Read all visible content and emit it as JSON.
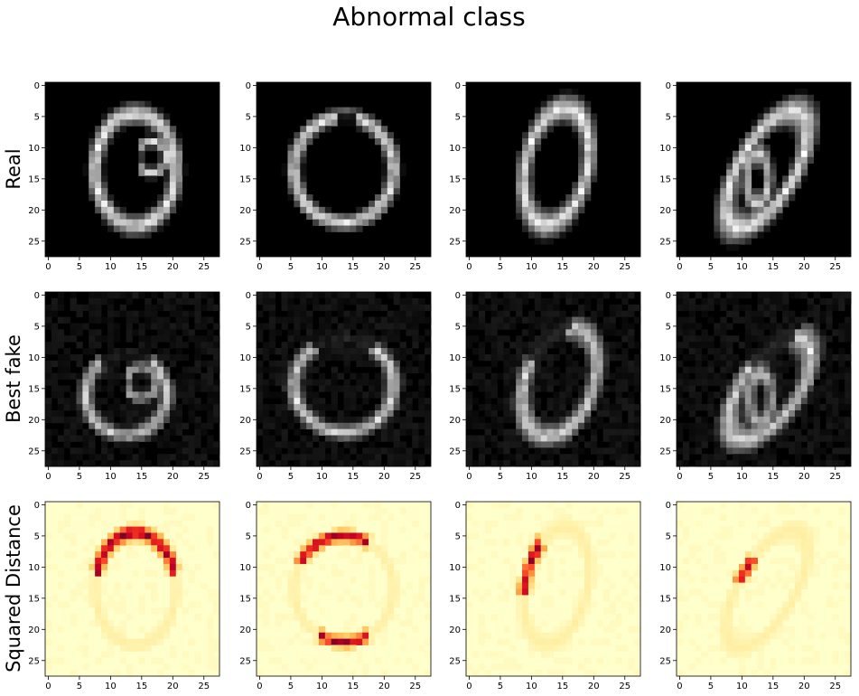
{
  "figure": {
    "title": "Abnormal class"
  },
  "rows": [
    {
      "label": "Real"
    },
    {
      "label": "Best fake"
    },
    {
      "label": "Squared Distance"
    }
  ],
  "chart_data": {
    "type": "heatmap",
    "title": "Abnormal class",
    "grid_rows": 3,
    "grid_cols": 4,
    "row_labels": [
      "Real",
      "Best fake",
      "Squared Distance"
    ],
    "image_size": [
      28,
      28
    ],
    "xticks": [
      "0",
      "5",
      "10",
      "15",
      "20",
      "25"
    ],
    "yticks": [
      "0",
      "5",
      "10",
      "15",
      "20",
      "25"
    ],
    "xlim": [
      -0.5,
      27.5
    ],
    "ylim": [
      27.5,
      -0.5
    ],
    "colormaps": {
      "Real": "gray",
      "Best fake": "gray",
      "Squared Distance": "YlOrRd"
    },
    "panels": [
      {
        "row": "Real",
        "col": 0,
        "shape": "ellipse",
        "cx": 14,
        "cy": 13.5,
        "rx": 6.5,
        "ry": 9,
        "tilt": 0,
        "intensity": 1.0,
        "extra": "inner-hook",
        "gap": "none"
      },
      {
        "row": "Real",
        "col": 1,
        "shape": "ellipse",
        "cx": 13.5,
        "cy": 13.5,
        "rx": 8,
        "ry": 8.5,
        "tilt": 0,
        "intensity": 1.0,
        "extra": "top-break",
        "gap": "none"
      },
      {
        "row": "Real",
        "col": 2,
        "shape": "ellipse",
        "cx": 14,
        "cy": 13,
        "rx": 5,
        "ry": 9.5,
        "tilt": 12,
        "intensity": 1.0,
        "extra": "none",
        "gap": "none"
      },
      {
        "row": "Real",
        "col": 3,
        "shape": "ellipse",
        "cx": 14,
        "cy": 13.5,
        "rx": 4.5,
        "ry": 10.5,
        "tilt": 30,
        "intensity": 1.0,
        "extra": "inner-loop",
        "gap": "none"
      },
      {
        "row": "Best fake",
        "col": 0,
        "shape": "ellipse",
        "cx": 12.5,
        "cy": 16,
        "rx": 6.5,
        "ry": 6.5,
        "tilt": 0,
        "intensity": 0.8,
        "extra": "inner-hook",
        "gap": "top"
      },
      {
        "row": "Best fake",
        "col": 1,
        "shape": "ellipse",
        "cx": 13.5,
        "cy": 14.5,
        "rx": 8,
        "ry": 7.5,
        "tilt": 0,
        "intensity": 0.85,
        "extra": "none",
        "gap": "top"
      },
      {
        "row": "Best fake",
        "col": 2,
        "shape": "ellipse",
        "cx": 14.5,
        "cy": 14,
        "rx": 5.5,
        "ry": 9,
        "tilt": 20,
        "intensity": 0.85,
        "extra": "none",
        "gap": "top-left"
      },
      {
        "row": "Best fake",
        "col": 3,
        "shape": "ellipse",
        "cx": 14.5,
        "cy": 15,
        "rx": 4.5,
        "ry": 9.5,
        "tilt": 35,
        "intensity": 0.85,
        "extra": "inner-loop",
        "gap": "top-left"
      },
      {
        "row": "Squared Distance",
        "col": 0,
        "shape": "ellipse",
        "cx": 14,
        "cy": 13.5,
        "rx": 6.5,
        "ry": 9,
        "tilt": 0,
        "intensity": 0.2,
        "extra": "none",
        "gap": "none",
        "hot_arc": [
          200,
          340
        ]
      },
      {
        "row": "Squared Distance",
        "col": 1,
        "shape": "ellipse",
        "cx": 13.5,
        "cy": 13.5,
        "rx": 8,
        "ry": 8.5,
        "tilt": 0,
        "intensity": 0.2,
        "extra": "none",
        "gap": "none",
        "hot_arc": [
          210,
          300
        ],
        "hot_arc2": [
          60,
          120
        ]
      },
      {
        "row": "Squared Distance",
        "col": 2,
        "shape": "ellipse",
        "cx": 14,
        "cy": 13,
        "rx": 5,
        "ry": 9.5,
        "tilt": 12,
        "intensity": 0.2,
        "extra": "none",
        "gap": "none",
        "hot_arc": [
          150,
          240
        ]
      },
      {
        "row": "Squared Distance",
        "col": 3,
        "shape": "ellipse",
        "cx": 14,
        "cy": 13.5,
        "rx": 4.5,
        "ry": 10.5,
        "tilt": 30,
        "intensity": 0.2,
        "extra": "none",
        "gap": "none",
        "hot_arc": [
          160,
          220
        ]
      }
    ]
  }
}
